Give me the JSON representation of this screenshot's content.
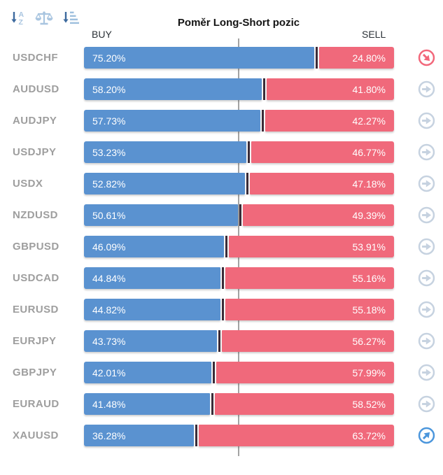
{
  "header": {
    "title": "Poměr Long-Short pozic",
    "buy_label": "BUY",
    "sell_label": "SELL",
    "sort_icons": [
      {
        "name": "sort-alphabetical-icon"
      },
      {
        "name": "balance-scale-icon"
      },
      {
        "name": "sort-amount-icon"
      }
    ]
  },
  "colors": {
    "buy": "#5a92d0",
    "sell": "#f0697b",
    "divider": "#3b2c38",
    "midline": "#a3a3a3",
    "label": "#9e9e9e",
    "trend_up": "#4b96dc",
    "trend_down": "#f2677a",
    "trend_flat": "#c6d2e0"
  },
  "chart_data": {
    "type": "bar",
    "orientation": "horizontal",
    "stacked": true,
    "title": "Poměr Long-Short pozic",
    "categories": [
      "USDCHF",
      "AUDUSD",
      "AUDJPY",
      "USDJPY",
      "USDX",
      "NZDUSD",
      "GBPUSD",
      "USDCAD",
      "EURUSD",
      "EURJPY",
      "GBPJPY",
      "EURAUD",
      "XAUUSD"
    ],
    "series": [
      {
        "name": "BUY",
        "values": [
          75.2,
          58.2,
          57.73,
          53.23,
          52.82,
          50.61,
          46.09,
          44.84,
          44.82,
          43.73,
          42.01,
          41.48,
          36.28
        ]
      },
      {
        "name": "SELL",
        "values": [
          24.8,
          41.8,
          42.27,
          46.77,
          47.18,
          49.39,
          53.91,
          55.16,
          55.18,
          56.27,
          57.99,
          58.52,
          63.72
        ]
      }
    ],
    "value_suffix": "%",
    "xlim": [
      0,
      100
    ],
    "midline": 50,
    "legend_position": "top",
    "grid": false
  },
  "rows": [
    {
      "pair": "USDCHF",
      "buy": 75.2,
      "sell": 24.8,
      "buy_label": "75.20%",
      "sell_label": "24.80%",
      "trend": "down"
    },
    {
      "pair": "AUDUSD",
      "buy": 58.2,
      "sell": 41.8,
      "buy_label": "58.20%",
      "sell_label": "41.80%",
      "trend": "flat"
    },
    {
      "pair": "AUDJPY",
      "buy": 57.73,
      "sell": 42.27,
      "buy_label": "57.73%",
      "sell_label": "42.27%",
      "trend": "flat"
    },
    {
      "pair": "USDJPY",
      "buy": 53.23,
      "sell": 46.77,
      "buy_label": "53.23%",
      "sell_label": "46.77%",
      "trend": "flat"
    },
    {
      "pair": "USDX",
      "buy": 52.82,
      "sell": 47.18,
      "buy_label": "52.82%",
      "sell_label": "47.18%",
      "trend": "flat"
    },
    {
      "pair": "NZDUSD",
      "buy": 50.61,
      "sell": 49.39,
      "buy_label": "50.61%",
      "sell_label": "49.39%",
      "trend": "flat"
    },
    {
      "pair": "GBPUSD",
      "buy": 46.09,
      "sell": 53.91,
      "buy_label": "46.09%",
      "sell_label": "53.91%",
      "trend": "flat"
    },
    {
      "pair": "USDCAD",
      "buy": 44.84,
      "sell": 55.16,
      "buy_label": "44.84%",
      "sell_label": "55.16%",
      "trend": "flat"
    },
    {
      "pair": "EURUSD",
      "buy": 44.82,
      "sell": 55.18,
      "buy_label": "44.82%",
      "sell_label": "55.18%",
      "trend": "flat"
    },
    {
      "pair": "EURJPY",
      "buy": 43.73,
      "sell": 56.27,
      "buy_label": "43.73%",
      "sell_label": "56.27%",
      "trend": "flat"
    },
    {
      "pair": "GBPJPY",
      "buy": 42.01,
      "sell": 57.99,
      "buy_label": "42.01%",
      "sell_label": "57.99%",
      "trend": "flat"
    },
    {
      "pair": "EURAUD",
      "buy": 41.48,
      "sell": 58.52,
      "buy_label": "41.48%",
      "sell_label": "58.52%",
      "trend": "flat"
    },
    {
      "pair": "XAUUSD",
      "buy": 36.28,
      "sell": 63.72,
      "buy_label": "36.28%",
      "sell_label": "63.72%",
      "trend": "up"
    }
  ]
}
